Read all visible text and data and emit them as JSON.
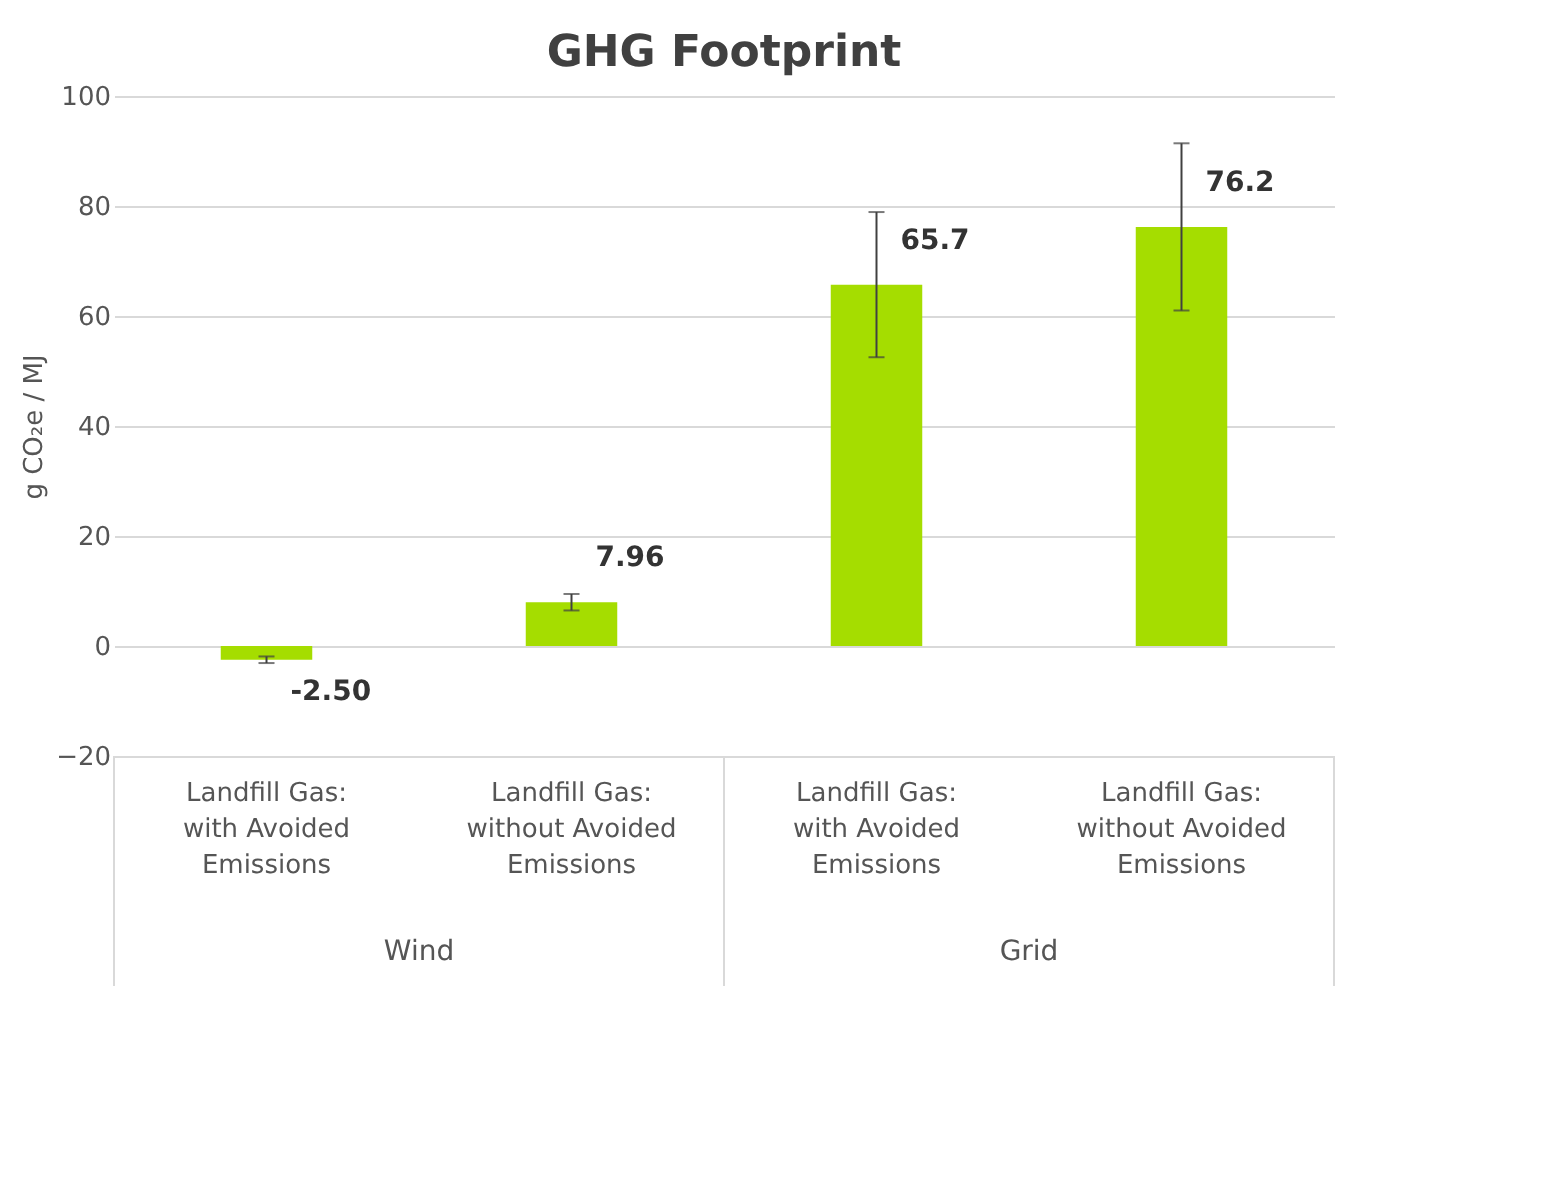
{
  "chart_data": {
    "type": "bar",
    "title": "GHG Footprint",
    "ylabel": "g CO₂e / MJ",
    "categories": [
      "Landfill Gas: with Avoided Emissions",
      "Landfill Gas: without Avoided Emissions",
      "Landfill Gas: with Avoided Emissions",
      "Landfill Gas: without Avoided Emissions"
    ],
    "values": [
      -2.5,
      7.96,
      65.7,
      76.2
    ],
    "errors": [
      0.6,
      1.5,
      13.2,
      15.2
    ],
    "value_labels": [
      "-2.50",
      "7.96",
      "65.7",
      "76.2"
    ],
    "color": "#a5dd00",
    "annotations": [
      "Wind",
      "Grid"
    ],
    "ylim": [
      -20,
      100
    ],
    "yticks": [
      -20,
      0,
      20,
      40,
      60,
      80,
      100
    ],
    "grid": "y"
  }
}
